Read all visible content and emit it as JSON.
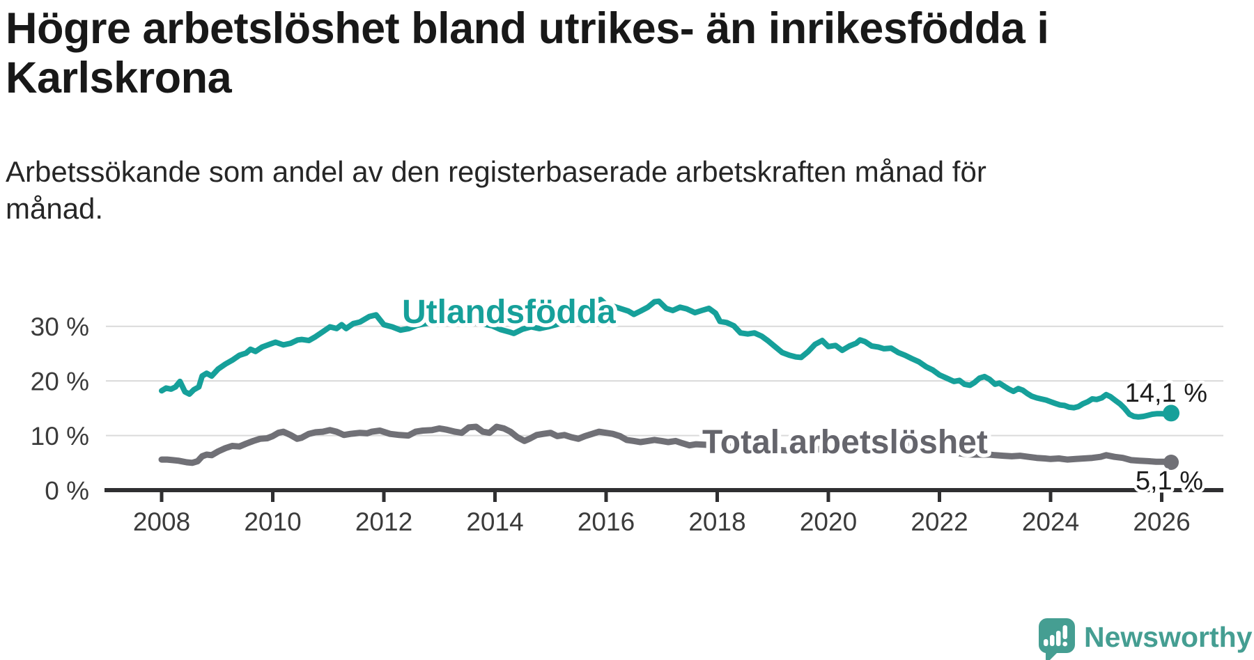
{
  "header": {
    "title": "Högre arbetslöshet bland utrikes- än inrikesfödda i\nKarlskrona",
    "subtitle": "Arbetssökande som andel av den registerbaserade arbetskraften månad för\nmånad."
  },
  "logo": {
    "text": "Newsworthy"
  },
  "chart_data": {
    "type": "line",
    "title": "Högre arbetslöshet bland utrikes- än inrikesfödda i Karlskrona",
    "subtitle": "Arbetssökande som andel av den registerbaserade arbetskraften månad för månad.",
    "xlabel": "",
    "ylabel": "",
    "x_axis": {
      "tick_years": [
        2008,
        2010,
        2012,
        2014,
        2016,
        2018,
        2020,
        2022,
        2024,
        2026
      ],
      "range": [
        2007.0,
        2027.1
      ]
    },
    "y_axis": {
      "ticks": [
        0,
        10,
        20,
        30
      ],
      "tick_labels": [
        "0 %",
        "10 %",
        "20 %",
        "30 %"
      ],
      "ylim": [
        0,
        37
      ],
      "unit": "%",
      "grid": true
    },
    "colors": {
      "utlandsfodda": "#16a09a",
      "total": "#707076",
      "total_label": "#65656c",
      "value_label": "#1d1d1d"
    },
    "series": [
      {
        "name": "Utlandsfödda",
        "color": "#16a09a",
        "end_value_label": "14,1 %",
        "end_value": 14.1,
        "points": [
          [
            2008.0,
            18.2
          ],
          [
            2008.08,
            18.7
          ],
          [
            2008.17,
            18.5
          ],
          [
            2008.25,
            18.9
          ],
          [
            2008.33,
            19.9
          ],
          [
            2008.42,
            18.0
          ],
          [
            2008.5,
            17.6
          ],
          [
            2008.58,
            18.4
          ],
          [
            2008.67,
            18.9
          ],
          [
            2008.73,
            20.9
          ],
          [
            2008.81,
            21.4
          ],
          [
            2008.9,
            20.9
          ],
          [
            2009.02,
            22.2
          ],
          [
            2009.15,
            23.1
          ],
          [
            2009.27,
            23.8
          ],
          [
            2009.4,
            24.7
          ],
          [
            2009.52,
            25.1
          ],
          [
            2009.6,
            25.8
          ],
          [
            2009.69,
            25.4
          ],
          [
            2009.81,
            26.2
          ],
          [
            2009.94,
            26.7
          ],
          [
            2010.05,
            27.1
          ],
          [
            2010.19,
            26.6
          ],
          [
            2010.32,
            26.9
          ],
          [
            2010.45,
            27.5
          ],
          [
            2010.52,
            27.6
          ],
          [
            2010.65,
            27.4
          ],
          [
            2010.77,
            28.1
          ],
          [
            2010.9,
            29.0
          ],
          [
            2011.03,
            29.9
          ],
          [
            2011.15,
            29.6
          ],
          [
            2011.24,
            30.3
          ],
          [
            2011.32,
            29.6
          ],
          [
            2011.45,
            30.5
          ],
          [
            2011.57,
            30.8
          ],
          [
            2011.74,
            31.8
          ],
          [
            2011.86,
            32.1
          ],
          [
            2012.0,
            30.3
          ],
          [
            2012.15,
            29.9
          ],
          [
            2012.3,
            29.3
          ],
          [
            2012.45,
            29.6
          ],
          [
            2012.6,
            30.2
          ],
          [
            2012.75,
            30.5
          ],
          [
            2012.9,
            30.7
          ],
          [
            2013.05,
            31.0
          ],
          [
            2013.2,
            31.3
          ],
          [
            2013.35,
            30.9
          ],
          [
            2013.5,
            31.1
          ],
          [
            2013.65,
            30.7
          ],
          [
            2013.8,
            30.4
          ],
          [
            2013.95,
            30.1
          ],
          [
            2014.1,
            29.4
          ],
          [
            2014.25,
            29.0
          ],
          [
            2014.34,
            28.7
          ],
          [
            2014.5,
            29.5
          ],
          [
            2014.65,
            29.9
          ],
          [
            2014.8,
            29.6
          ],
          [
            2014.95,
            29.9
          ],
          [
            2015.1,
            30.3
          ],
          [
            2015.25,
            30.9
          ],
          [
            2015.4,
            31.6
          ],
          [
            2015.55,
            32.4
          ],
          [
            2015.68,
            33.6
          ],
          [
            2015.78,
            34.6
          ],
          [
            2015.9,
            34.9
          ],
          [
            2016.0,
            34.0
          ],
          [
            2016.12,
            33.7
          ],
          [
            2016.25,
            33.3
          ],
          [
            2016.4,
            32.8
          ],
          [
            2016.5,
            32.2
          ],
          [
            2016.62,
            32.8
          ],
          [
            2016.75,
            33.5
          ],
          [
            2016.87,
            34.5
          ],
          [
            2016.95,
            34.6
          ],
          [
            2017.08,
            33.3
          ],
          [
            2017.2,
            32.9
          ],
          [
            2017.33,
            33.5
          ],
          [
            2017.45,
            33.2
          ],
          [
            2017.6,
            32.5
          ],
          [
            2017.72,
            32.9
          ],
          [
            2017.85,
            33.3
          ],
          [
            2017.97,
            32.4
          ],
          [
            2018.05,
            30.9
          ],
          [
            2018.17,
            30.7
          ],
          [
            2018.3,
            30.1
          ],
          [
            2018.42,
            28.8
          ],
          [
            2018.55,
            28.6
          ],
          [
            2018.67,
            28.8
          ],
          [
            2018.8,
            28.2
          ],
          [
            2018.92,
            27.3
          ],
          [
            2019.05,
            26.2
          ],
          [
            2019.17,
            25.2
          ],
          [
            2019.3,
            24.7
          ],
          [
            2019.42,
            24.4
          ],
          [
            2019.51,
            24.3
          ],
          [
            2019.64,
            25.4
          ],
          [
            2019.76,
            26.7
          ],
          [
            2019.89,
            27.4
          ],
          [
            2020.0,
            26.3
          ],
          [
            2020.13,
            26.5
          ],
          [
            2020.25,
            25.6
          ],
          [
            2020.38,
            26.4
          ],
          [
            2020.5,
            26.9
          ],
          [
            2020.57,
            27.5
          ],
          [
            2020.66,
            27.2
          ],
          [
            2020.78,
            26.4
          ],
          [
            2020.9,
            26.2
          ],
          [
            2021.0,
            25.9
          ],
          [
            2021.13,
            26.0
          ],
          [
            2021.26,
            25.2
          ],
          [
            2021.38,
            24.7
          ],
          [
            2021.5,
            24.1
          ],
          [
            2021.63,
            23.5
          ],
          [
            2021.76,
            22.6
          ],
          [
            2021.88,
            22.0
          ],
          [
            2022.0,
            21.1
          ],
          [
            2022.13,
            20.5
          ],
          [
            2022.26,
            19.9
          ],
          [
            2022.36,
            20.1
          ],
          [
            2022.45,
            19.4
          ],
          [
            2022.55,
            19.2
          ],
          [
            2022.63,
            19.7
          ],
          [
            2022.72,
            20.5
          ],
          [
            2022.81,
            20.8
          ],
          [
            2022.9,
            20.3
          ],
          [
            2023.0,
            19.4
          ],
          [
            2023.08,
            19.6
          ],
          [
            2023.17,
            19.0
          ],
          [
            2023.25,
            18.5
          ],
          [
            2023.33,
            18.1
          ],
          [
            2023.42,
            18.6
          ],
          [
            2023.5,
            18.3
          ],
          [
            2023.58,
            17.7
          ],
          [
            2023.66,
            17.2
          ],
          [
            2023.75,
            16.9
          ],
          [
            2023.83,
            16.7
          ],
          [
            2023.92,
            16.5
          ],
          [
            2024.0,
            16.2
          ],
          [
            2024.08,
            15.9
          ],
          [
            2024.17,
            15.6
          ],
          [
            2024.25,
            15.5
          ],
          [
            2024.33,
            15.2
          ],
          [
            2024.42,
            15.1
          ],
          [
            2024.5,
            15.3
          ],
          [
            2024.58,
            15.8
          ],
          [
            2024.67,
            16.2
          ],
          [
            2024.75,
            16.7
          ],
          [
            2024.83,
            16.6
          ],
          [
            2024.92,
            16.9
          ],
          [
            2025.0,
            17.5
          ],
          [
            2025.08,
            17.1
          ],
          [
            2025.17,
            16.4
          ],
          [
            2025.25,
            15.8
          ],
          [
            2025.33,
            15.0
          ],
          [
            2025.42,
            13.9
          ],
          [
            2025.5,
            13.5
          ],
          [
            2025.58,
            13.4
          ],
          [
            2025.67,
            13.5
          ],
          [
            2025.75,
            13.7
          ],
          [
            2025.83,
            13.9
          ],
          [
            2025.92,
            14.0
          ],
          [
            2026.0,
            14.0
          ],
          [
            2026.08,
            13.9
          ],
          [
            2026.17,
            14.1
          ]
        ]
      },
      {
        "name": "Total arbetslöshet",
        "color": "#707076",
        "end_value_label": "5,1 %",
        "end_value": 5.1,
        "points": [
          [
            2008.0,
            5.6
          ],
          [
            2008.1,
            5.6
          ],
          [
            2008.2,
            5.5
          ],
          [
            2008.3,
            5.4
          ],
          [
            2008.45,
            5.1
          ],
          [
            2008.55,
            5.0
          ],
          [
            2008.65,
            5.3
          ],
          [
            2008.73,
            6.2
          ],
          [
            2008.81,
            6.5
          ],
          [
            2008.9,
            6.4
          ],
          [
            2009.02,
            7.1
          ],
          [
            2009.15,
            7.7
          ],
          [
            2009.27,
            8.1
          ],
          [
            2009.4,
            8.0
          ],
          [
            2009.52,
            8.5
          ],
          [
            2009.65,
            9.0
          ],
          [
            2009.77,
            9.4
          ],
          [
            2009.9,
            9.5
          ],
          [
            2010.0,
            9.9
          ],
          [
            2010.1,
            10.5
          ],
          [
            2010.19,
            10.7
          ],
          [
            2010.32,
            10.1
          ],
          [
            2010.44,
            9.4
          ],
          [
            2010.52,
            9.6
          ],
          [
            2010.65,
            10.3
          ],
          [
            2010.77,
            10.6
          ],
          [
            2010.9,
            10.7
          ],
          [
            2011.03,
            11.0
          ],
          [
            2011.15,
            10.7
          ],
          [
            2011.28,
            10.1
          ],
          [
            2011.4,
            10.3
          ],
          [
            2011.57,
            10.5
          ],
          [
            2011.7,
            10.4
          ],
          [
            2011.78,
            10.7
          ],
          [
            2011.93,
            10.9
          ],
          [
            2012.11,
            10.3
          ],
          [
            2012.28,
            10.1
          ],
          [
            2012.44,
            10.0
          ],
          [
            2012.57,
            10.7
          ],
          [
            2012.7,
            10.9
          ],
          [
            2012.87,
            11.0
          ],
          [
            2013.0,
            11.3
          ],
          [
            2013.12,
            11.1
          ],
          [
            2013.28,
            10.7
          ],
          [
            2013.4,
            10.5
          ],
          [
            2013.53,
            11.5
          ],
          [
            2013.66,
            11.6
          ],
          [
            2013.78,
            10.7
          ],
          [
            2013.9,
            10.5
          ],
          [
            2014.03,
            11.6
          ],
          [
            2014.16,
            11.3
          ],
          [
            2014.28,
            10.7
          ],
          [
            2014.4,
            9.7
          ],
          [
            2014.53,
            9.0
          ],
          [
            2014.62,
            9.4
          ],
          [
            2014.75,
            10.1
          ],
          [
            2014.87,
            10.3
          ],
          [
            2015.0,
            10.5
          ],
          [
            2015.12,
            9.9
          ],
          [
            2015.25,
            10.1
          ],
          [
            2015.37,
            9.7
          ],
          [
            2015.5,
            9.4
          ],
          [
            2015.62,
            9.9
          ],
          [
            2015.75,
            10.3
          ],
          [
            2015.87,
            10.7
          ],
          [
            2016.0,
            10.5
          ],
          [
            2016.12,
            10.3
          ],
          [
            2016.25,
            9.9
          ],
          [
            2016.37,
            9.2
          ],
          [
            2016.5,
            9.0
          ],
          [
            2016.62,
            8.8
          ],
          [
            2016.75,
            9.0
          ],
          [
            2016.87,
            9.2
          ],
          [
            2017.0,
            9.0
          ],
          [
            2017.12,
            8.8
          ],
          [
            2017.25,
            9.0
          ],
          [
            2017.37,
            8.6
          ],
          [
            2017.5,
            8.2
          ],
          [
            2017.62,
            8.4
          ],
          [
            2017.8,
            8.3
          ],
          [
            2018.0,
            8.1
          ],
          [
            2018.3,
            7.9
          ],
          [
            2018.6,
            7.7
          ],
          [
            2018.9,
            7.5
          ],
          [
            2019.2,
            7.3
          ],
          [
            2019.5,
            7.2
          ],
          [
            2019.8,
            7.4
          ],
          [
            2020.1,
            8.4
          ],
          [
            2020.35,
            9.3
          ],
          [
            2020.6,
            9.6
          ],
          [
            2020.85,
            9.4
          ],
          [
            2021.1,
            9.0
          ],
          [
            2021.35,
            8.5
          ],
          [
            2021.6,
            8.0
          ],
          [
            2021.85,
            7.6
          ],
          [
            2022.05,
            7.2
          ],
          [
            2022.25,
            6.9
          ],
          [
            2022.45,
            6.6
          ],
          [
            2022.6,
            6.5
          ],
          [
            2022.75,
            6.5
          ],
          [
            2022.9,
            6.5
          ],
          [
            2023.0,
            6.4
          ],
          [
            2023.15,
            6.3
          ],
          [
            2023.3,
            6.2
          ],
          [
            2023.45,
            6.3
          ],
          [
            2023.6,
            6.1
          ],
          [
            2023.75,
            5.9
          ],
          [
            2023.9,
            5.8
          ],
          [
            2024.0,
            5.7
          ],
          [
            2024.15,
            5.8
          ],
          [
            2024.3,
            5.6
          ],
          [
            2024.45,
            5.7
          ],
          [
            2024.6,
            5.8
          ],
          [
            2024.75,
            5.9
          ],
          [
            2024.9,
            6.1
          ],
          [
            2025.0,
            6.4
          ],
          [
            2025.15,
            6.1
          ],
          [
            2025.3,
            5.9
          ],
          [
            2025.45,
            5.5
          ],
          [
            2025.6,
            5.4
          ],
          [
            2025.75,
            5.3
          ],
          [
            2025.9,
            5.2
          ],
          [
            2026.05,
            5.2
          ],
          [
            2026.17,
            5.1
          ]
        ]
      }
    ],
    "legend_position": "inline-labels"
  }
}
